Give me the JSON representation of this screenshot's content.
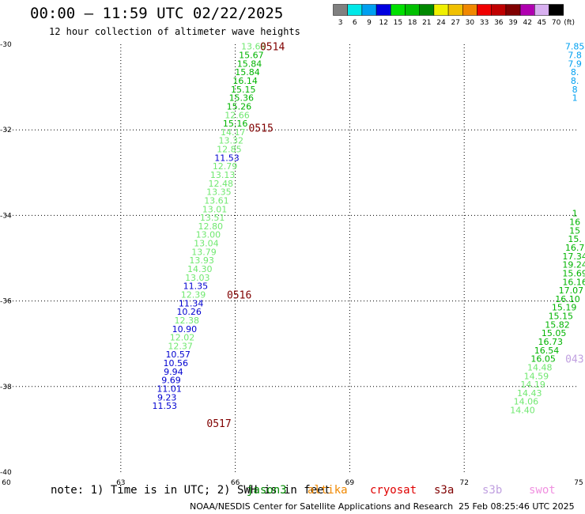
{
  "header": {
    "title": "00:00 – 11:59 UTC 02/22/2025",
    "subtitle": "12 hour collection of altimeter wave heights"
  },
  "colorbar": {
    "unit": "(ft)",
    "bins": [
      {
        "label": "3",
        "color": "#808080"
      },
      {
        "label": "6",
        "color": "#00e8e8"
      },
      {
        "label": "9",
        "color": "#00a0f0"
      },
      {
        "label": "12",
        "color": "#0000e0"
      },
      {
        "label": "15",
        "color": "#00e000"
      },
      {
        "label": "18",
        "color": "#00c000"
      },
      {
        "label": "21",
        "color": "#008800"
      },
      {
        "label": "24",
        "color": "#f0f000"
      },
      {
        "label": "27",
        "color": "#f0c000"
      },
      {
        "label": "30",
        "color": "#f08800"
      },
      {
        "label": "33",
        "color": "#f00000"
      },
      {
        "label": "36",
        "color": "#c00000"
      },
      {
        "label": "39",
        "color": "#800000"
      },
      {
        "label": "42",
        "color": "#b000b0"
      },
      {
        "label": "45",
        "color": "#d8b0f0"
      },
      {
        "label": "70",
        "color": "#000000"
      }
    ]
  },
  "chart_data": {
    "type": "scatter",
    "xlim": [
      60,
      75
    ],
    "ylim": [
      -40,
      -30
    ],
    "x_ticks": [
      "60",
      "63",
      "66",
      "69",
      "72",
      "75"
    ],
    "y_ticks": [
      "-30",
      "-32",
      "-34",
      "-36",
      "-38",
      "-40"
    ],
    "grid": true,
    "points": [
      {
        "x": 66.48,
        "y": -30.05,
        "v": "13.69",
        "color": "#70e870"
      },
      {
        "x": 66.42,
        "y": -30.25,
        "v": "15.67",
        "color": "#00b400"
      },
      {
        "x": 66.37,
        "y": -30.45,
        "v": "15.84",
        "color": "#00b400"
      },
      {
        "x": 66.32,
        "y": -30.65,
        "v": "15.84",
        "color": "#00b400"
      },
      {
        "x": 66.26,
        "y": -30.85,
        "v": "16.14",
        "color": "#00b400"
      },
      {
        "x": 66.21,
        "y": -31.05,
        "v": "15.15",
        "color": "#00b400"
      },
      {
        "x": 66.16,
        "y": -31.25,
        "v": "15.36",
        "color": "#00b400"
      },
      {
        "x": 66.1,
        "y": -31.45,
        "v": "15.26",
        "color": "#00b400"
      },
      {
        "x": 66.05,
        "y": -31.65,
        "v": "12.66",
        "color": "#70e870"
      },
      {
        "x": 66.0,
        "y": -31.85,
        "v": "15.16",
        "color": "#00b400"
      },
      {
        "x": 65.94,
        "y": -32.05,
        "v": "14.17",
        "color": "#70e870"
      },
      {
        "x": 65.89,
        "y": -32.25,
        "v": "13.32",
        "color": "#70e870"
      },
      {
        "x": 65.84,
        "y": -32.45,
        "v": "12.85",
        "color": "#70e870"
      },
      {
        "x": 65.78,
        "y": -32.65,
        "v": "11.53",
        "color": "#0000d0"
      },
      {
        "x": 65.73,
        "y": -32.85,
        "v": "12.79",
        "color": "#70e870"
      },
      {
        "x": 65.67,
        "y": -33.05,
        "v": "13.13",
        "color": "#70e870"
      },
      {
        "x": 65.62,
        "y": -33.25,
        "v": "12.48",
        "color": "#70e870"
      },
      {
        "x": 65.57,
        "y": -33.45,
        "v": "13.35",
        "color": "#70e870"
      },
      {
        "x": 65.51,
        "y": -33.65,
        "v": "13.61",
        "color": "#70e870"
      },
      {
        "x": 65.46,
        "y": -33.85,
        "v": "13.01",
        "color": "#70e870"
      },
      {
        "x": 65.4,
        "y": -34.05,
        "v": "13.51",
        "color": "#70e870"
      },
      {
        "x": 65.35,
        "y": -34.25,
        "v": "12.80",
        "color": "#70e870"
      },
      {
        "x": 65.29,
        "y": -34.45,
        "v": "13.00",
        "color": "#70e870"
      },
      {
        "x": 65.24,
        "y": -34.65,
        "v": "13.04",
        "color": "#70e870"
      },
      {
        "x": 65.18,
        "y": -34.85,
        "v": "13.79",
        "color": "#70e870"
      },
      {
        "x": 65.12,
        "y": -35.05,
        "v": "13.93",
        "color": "#70e870"
      },
      {
        "x": 65.07,
        "y": -35.25,
        "v": "14.30",
        "color": "#70e870"
      },
      {
        "x": 65.01,
        "y": -35.45,
        "v": "13.03",
        "color": "#70e870"
      },
      {
        "x": 64.96,
        "y": -35.65,
        "v": "11.35",
        "color": "#0000d0"
      },
      {
        "x": 64.9,
        "y": -35.85,
        "v": "12.39",
        "color": "#70e870"
      },
      {
        "x": 64.84,
        "y": -36.05,
        "v": "11.34",
        "color": "#0000d0"
      },
      {
        "x": 64.79,
        "y": -36.25,
        "v": "10.26",
        "color": "#0000d0"
      },
      {
        "x": 64.73,
        "y": -36.45,
        "v": "12.38",
        "color": "#70e870"
      },
      {
        "x": 64.67,
        "y": -36.65,
        "v": "10.90",
        "color": "#0000d0"
      },
      {
        "x": 64.61,
        "y": -36.85,
        "v": "12.02",
        "color": "#70e870"
      },
      {
        "x": 64.56,
        "y": -37.05,
        "v": "12.37",
        "color": "#70e870"
      },
      {
        "x": 64.5,
        "y": -37.25,
        "v": "10.57",
        "color": "#0000d0"
      },
      {
        "x": 64.44,
        "y": -37.45,
        "v": "10.56",
        "color": "#0000d0"
      },
      {
        "x": 64.38,
        "y": -37.65,
        "v": "9.94",
        "color": "#0000d0"
      },
      {
        "x": 64.32,
        "y": -37.85,
        "v": "9.69",
        "color": "#0000d0"
      },
      {
        "x": 64.27,
        "y": -38.05,
        "v": "11.01",
        "color": "#0000d0"
      },
      {
        "x": 64.21,
        "y": -38.25,
        "v": "9.23",
        "color": "#0000d0"
      },
      {
        "x": 64.15,
        "y": -38.45,
        "v": "11.53",
        "color": "#0000d0"
      },
      {
        "x": 74.9,
        "y": -30.05,
        "v": "7.85",
        "color": "#00a0f0"
      },
      {
        "x": 74.9,
        "y": -30.25,
        "v": "7.8",
        "color": "#00a0f0"
      },
      {
        "x": 74.9,
        "y": -30.45,
        "v": "7.9",
        "color": "#00a0f0"
      },
      {
        "x": 74.9,
        "y": -30.65,
        "v": "8.",
        "color": "#00a0f0"
      },
      {
        "x": 74.9,
        "y": -30.85,
        "v": "8.",
        "color": "#00a0f0"
      },
      {
        "x": 74.9,
        "y": -31.05,
        "v": "8",
        "color": "#00a0f0"
      },
      {
        "x": 74.9,
        "y": -31.25,
        "v": "1",
        "color": "#00a0f0"
      },
      {
        "x": 74.9,
        "y": -33.95,
        "v": "1",
        "color": "#00b400"
      },
      {
        "x": 74.9,
        "y": -34.15,
        "v": "16",
        "color": "#00b400"
      },
      {
        "x": 74.9,
        "y": -34.35,
        "v": "15",
        "color": "#00b400"
      },
      {
        "x": 74.9,
        "y": -34.55,
        "v": "15.",
        "color": "#00b400"
      },
      {
        "x": 74.9,
        "y": -34.75,
        "v": "16.7",
        "color": "#00b400"
      },
      {
        "x": 74.9,
        "y": -34.95,
        "v": "17.34",
        "color": "#00b400"
      },
      {
        "x": 74.9,
        "y": -35.15,
        "v": "19.24",
        "color": "#00b400"
      },
      {
        "x": 74.9,
        "y": -35.35,
        "v": "15.69",
        "color": "#00b400"
      },
      {
        "x": 74.9,
        "y": -35.55,
        "v": "16.16",
        "color": "#00b400"
      },
      {
        "x": 74.8,
        "y": -35.75,
        "v": "17.07",
        "color": "#00b400"
      },
      {
        "x": 74.71,
        "y": -35.95,
        "v": "16.10",
        "color": "#00b400"
      },
      {
        "x": 74.62,
        "y": -36.15,
        "v": "15.19",
        "color": "#00b400"
      },
      {
        "x": 74.53,
        "y": -36.35,
        "v": "15.15",
        "color": "#00b400"
      },
      {
        "x": 74.44,
        "y": -36.55,
        "v": "15.82",
        "color": "#00b400"
      },
      {
        "x": 74.35,
        "y": -36.75,
        "v": "15.05",
        "color": "#00b400"
      },
      {
        "x": 74.26,
        "y": -36.95,
        "v": "16.73",
        "color": "#00b400"
      },
      {
        "x": 74.16,
        "y": -37.15,
        "v": "16.54",
        "color": "#00b400"
      },
      {
        "x": 74.07,
        "y": -37.35,
        "v": "16.05",
        "color": "#00b400"
      },
      {
        "x": 73.98,
        "y": -37.55,
        "v": "14.48",
        "color": "#70e870"
      },
      {
        "x": 73.89,
        "y": -37.75,
        "v": "14.59",
        "color": "#70e870"
      },
      {
        "x": 73.8,
        "y": -37.95,
        "v": "14.19",
        "color": "#70e870"
      },
      {
        "x": 73.71,
        "y": -38.15,
        "v": "14.43",
        "color": "#70e870"
      },
      {
        "x": 73.62,
        "y": -38.35,
        "v": "14.06",
        "color": "#70e870"
      },
      {
        "x": 73.53,
        "y": -38.55,
        "v": "14.40",
        "color": "#70e870"
      }
    ],
    "time_labels": [
      {
        "x": 66.65,
        "y": -30.05,
        "text": "0514",
        "color": "#800000"
      },
      {
        "x": 66.35,
        "y": -31.95,
        "text": "0515",
        "color": "#800000"
      },
      {
        "x": 65.78,
        "y": -35.85,
        "text": "0516",
        "color": "#800000"
      },
      {
        "x": 65.25,
        "y": -38.85,
        "text": "0517",
        "color": "#800000"
      },
      {
        "x": 74.65,
        "y": -37.35,
        "text": "043",
        "color": "#c0a0e0"
      }
    ]
  },
  "footer": {
    "note": "note: 1) Time is in UTC; 2) SWH is in feet",
    "satellites": [
      {
        "name": "jason3",
        "color": "#008800"
      },
      {
        "name": "altika",
        "color": "#f08800"
      },
      {
        "name": "cryosat",
        "color": "#e00000"
      },
      {
        "name": "s3a",
        "color": "#800000"
      },
      {
        "name": "s3b",
        "color": "#c0a0e0"
      },
      {
        "name": "swot",
        "color": "#f090e0"
      }
    ],
    "credit": "NOAA/NESDIS Center for Satellite Applications and Research",
    "timestamp": "25 Feb 08:25:46 UTC 2025"
  }
}
